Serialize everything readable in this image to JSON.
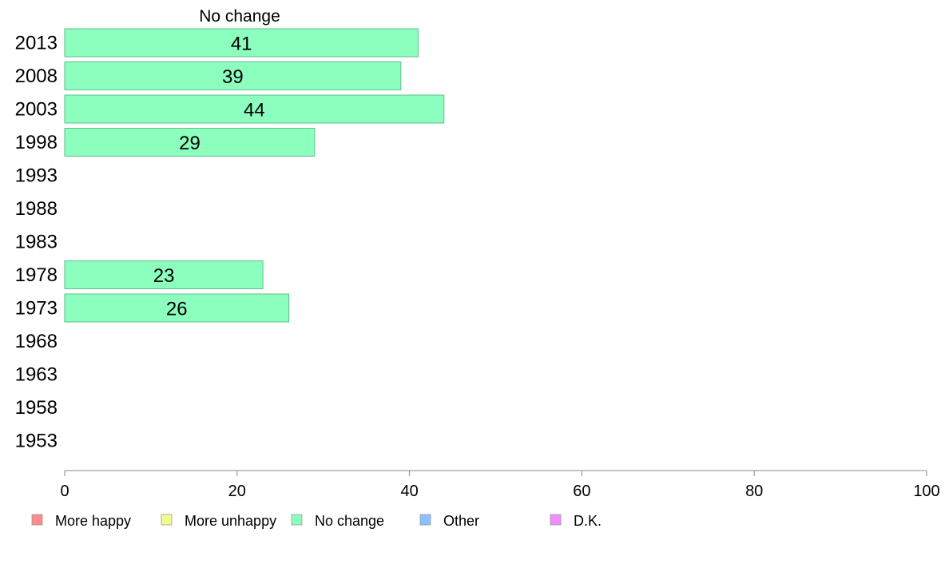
{
  "chart_data": {
    "type": "bar",
    "orientation": "horizontal",
    "title": "No change",
    "categories": [
      "2013",
      "2008",
      "2003",
      "1998",
      "1993",
      "1988",
      "1983",
      "1978",
      "1973",
      "1968",
      "1963",
      "1958",
      "1953"
    ],
    "series": [
      {
        "name": "No change",
        "color": "#8cffbf",
        "values": [
          41,
          39,
          44,
          29,
          null,
          null,
          null,
          23,
          26,
          null,
          null,
          null,
          null
        ]
      }
    ],
    "xlim": [
      0,
      100
    ],
    "xticks": [
      0,
      20,
      40,
      60,
      80,
      100
    ],
    "grid": false,
    "legend_position": "bottom",
    "legend": [
      {
        "label": "More happy",
        "color": "#ff8c8c"
      },
      {
        "label": "More unhappy",
        "color": "#f0ff8c"
      },
      {
        "label": "No change",
        "color": "#8cffbf"
      },
      {
        "label": "Other",
        "color": "#8cbfff"
      },
      {
        "label": "D.K.",
        "color": "#f08cff"
      }
    ]
  }
}
